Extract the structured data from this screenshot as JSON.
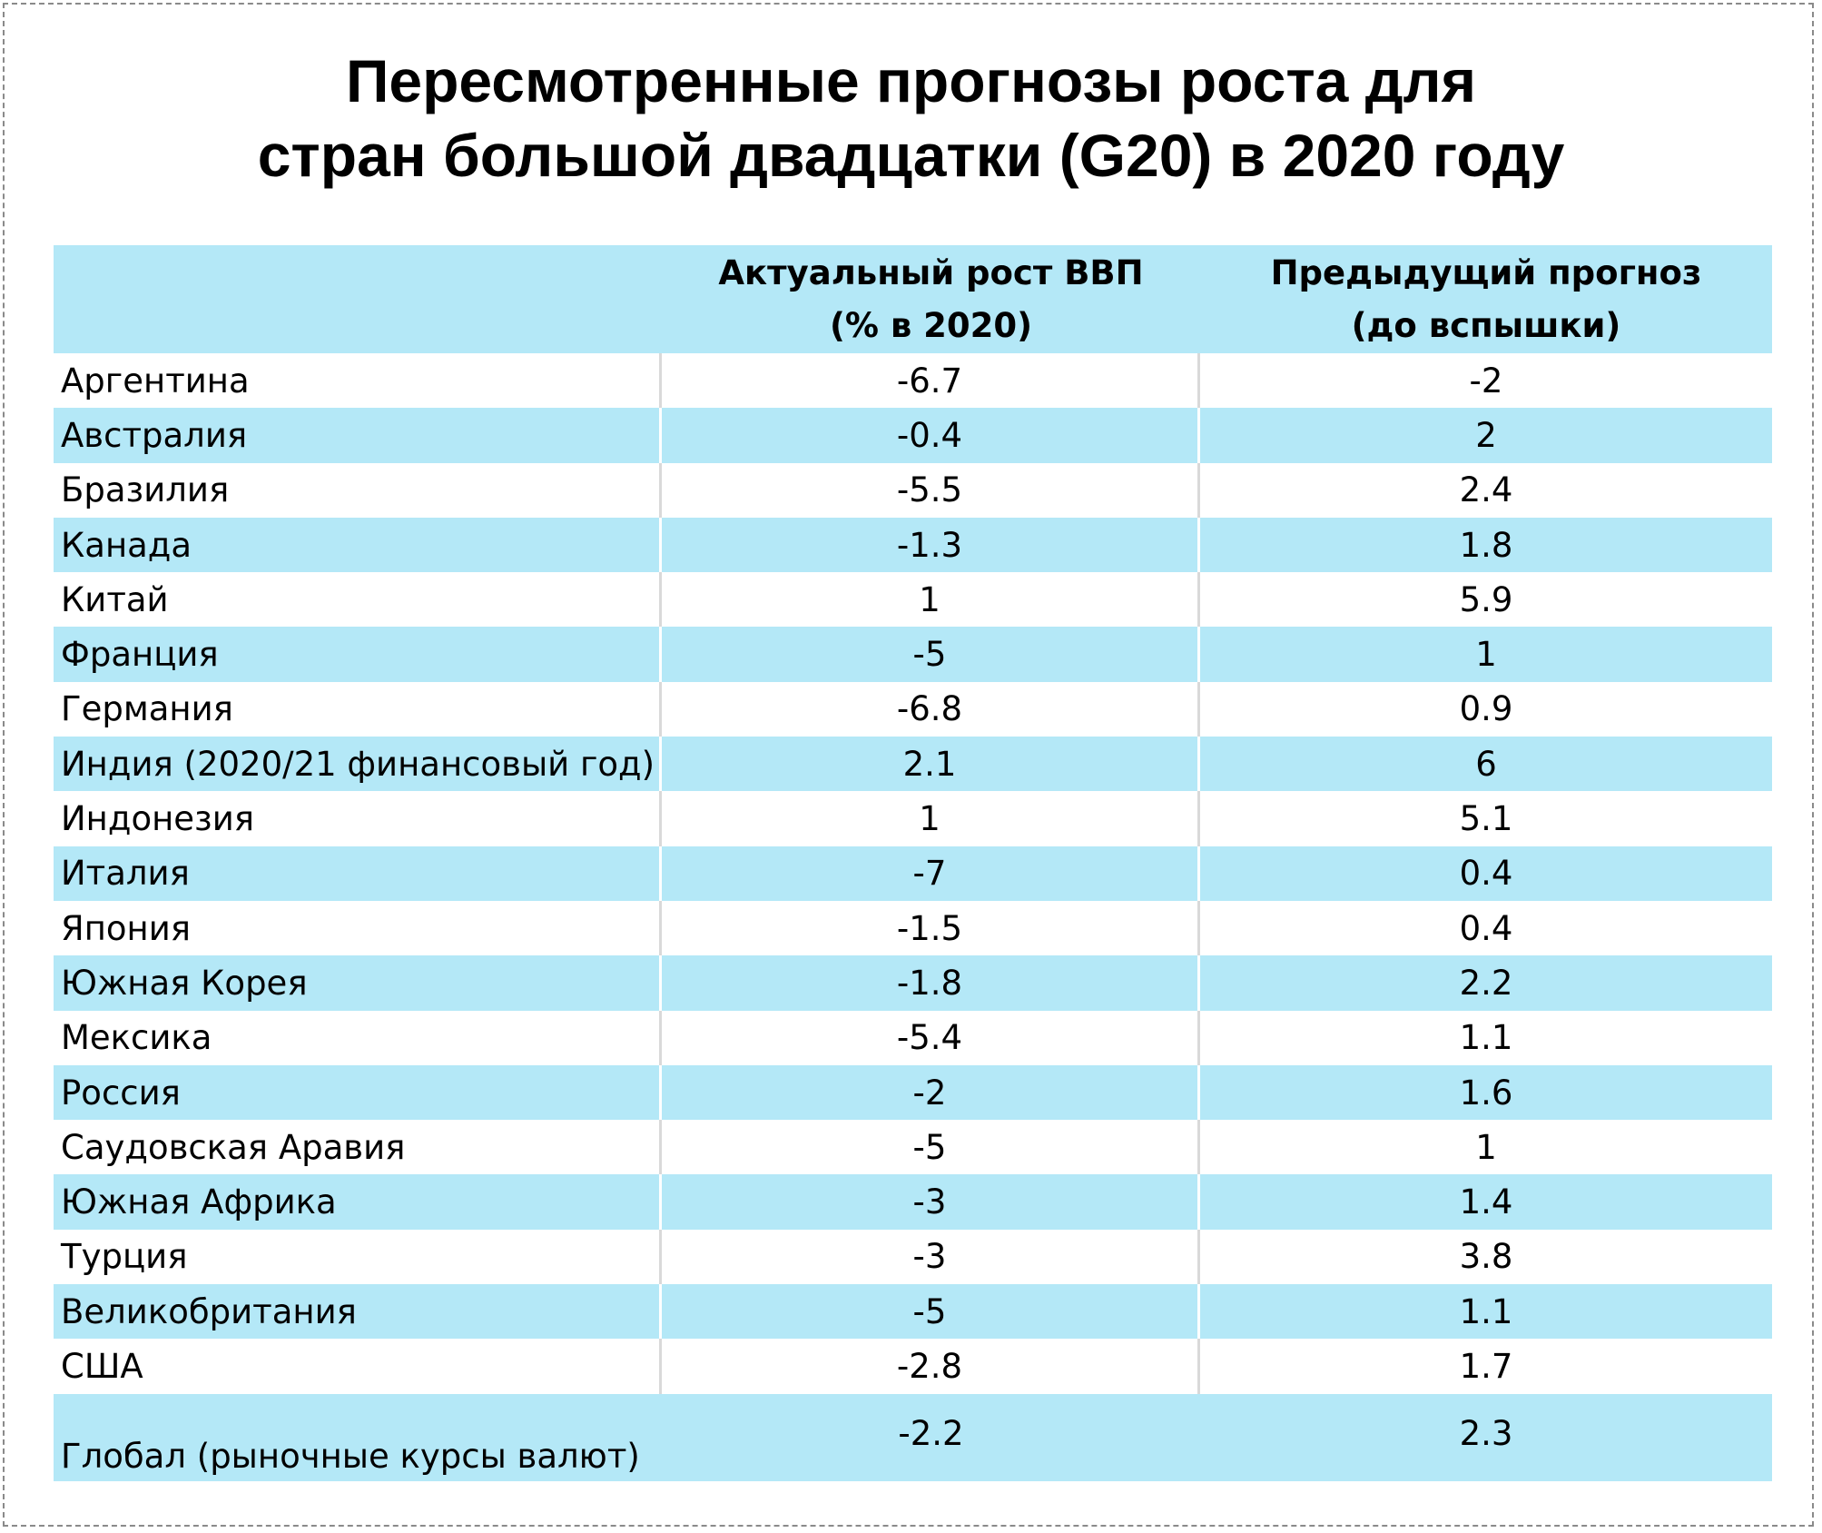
{
  "chart_data": {
    "type": "table",
    "title": [
      "Пересмотренные прогнозы роста для",
      "стран большой двадцатки (G20) в 2020 году"
    ],
    "columns": [
      "",
      [
        "Актуальный рост ВВП",
        "(% в 2020)"
      ],
      [
        "Предыдущий прогноз",
        "(до вспышки)"
      ]
    ],
    "rows": [
      {
        "country": "Аргентина",
        "actual": "-6.7",
        "previous": "-2"
      },
      {
        "country": "Австралия",
        "actual": "-0.4",
        "previous": "2"
      },
      {
        "country": "Бразилия",
        "actual": "-5.5",
        "previous": "2.4"
      },
      {
        "country": "Канада",
        "actual": "-1.3",
        "previous": "1.8"
      },
      {
        "country": "Китай",
        "actual": "1",
        "previous": "5.9"
      },
      {
        "country": "Франция",
        "actual": "-5",
        "previous": "1"
      },
      {
        "country": "Германия",
        "actual": "-6.8",
        "previous": "0.9"
      },
      {
        "country": "Индия (2020/21 финансовый год)",
        "actual": "2.1",
        "previous": "6"
      },
      {
        "country": "Индонезия",
        "actual": "1",
        "previous": "5.1"
      },
      {
        "country": "Италия",
        "actual": "-7",
        "previous": "0.4"
      },
      {
        "country": "Япония",
        "actual": "-1.5",
        "previous": "0.4"
      },
      {
        "country": "Южная Корея",
        "actual": "-1.8",
        "previous": "2.2"
      },
      {
        "country": "Мексика",
        "actual": "-5.4",
        "previous": "1.1"
      },
      {
        "country": "Россия",
        "actual": "-2",
        "previous": "1.6"
      },
      {
        "country": "Саудовская Аравия",
        "actual": "-5",
        "previous": "1"
      },
      {
        "country": "Южная Африка",
        "actual": "-3",
        "previous": "1.4"
      },
      {
        "country": "Турция",
        "actual": "-3",
        "previous": "3.8"
      },
      {
        "country": "Великобритания",
        "actual": "-5",
        "previous": "1.1"
      },
      {
        "country": "США",
        "actual": "-2.8",
        "previous": "1.7"
      },
      {
        "country": "Глобал (рыночные курсы валют)",
        "actual": "-2.2",
        "previous": "2.3"
      }
    ],
    "colors": {
      "stripe": "#b4e8f7",
      "background": "#ffffff",
      "divider": "#d9d9d9"
    }
  }
}
